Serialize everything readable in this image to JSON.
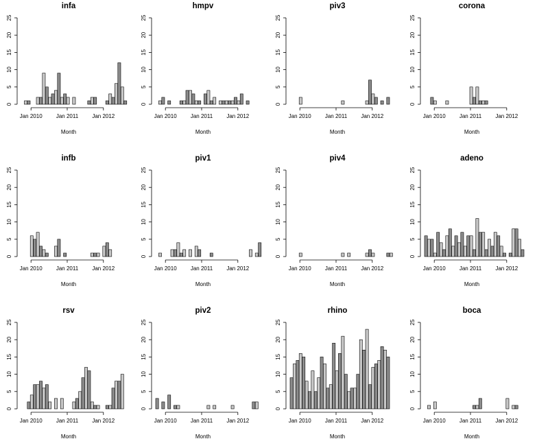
{
  "chart_data": [
    {
      "type": "bar",
      "title": "infa",
      "xlabel": "Month",
      "ylabel": "",
      "ylim": [
        0,
        25
      ],
      "yticks": [
        0,
        5,
        10,
        15,
        20,
        25
      ],
      "xticks": [
        "Jan 2010",
        "Jan 2011",
        "Jan 2012"
      ],
      "categories_start": "2009-10",
      "values": [
        0,
        1,
        1,
        0,
        0,
        2,
        2,
        9,
        5,
        2,
        3,
        4,
        9,
        2,
        3,
        2,
        0,
        2,
        0,
        0,
        0,
        0,
        1,
        2,
        2,
        0,
        0,
        0,
        1,
        3,
        2,
        6,
        12,
        5,
        1
      ]
    },
    {
      "type": "bar",
      "title": "hmpv",
      "xlabel": "Month",
      "ylabel": "",
      "ylim": [
        0,
        25
      ],
      "yticks": [
        0,
        5,
        10,
        15,
        20,
        25
      ],
      "xticks": [
        "Jan 2010",
        "Jan 2011",
        "Jan 2012"
      ],
      "categories_start": "2009-10",
      "values": [
        0,
        1,
        2,
        0,
        1,
        0,
        0,
        0,
        1,
        1,
        4,
        4,
        3,
        1,
        1,
        0,
        3,
        4,
        1,
        2,
        0,
        1,
        1,
        1,
        1,
        1,
        2,
        1,
        3,
        0,
        1,
        0,
        0,
        0,
        0
      ]
    },
    {
      "type": "bar",
      "title": "piv3",
      "xlabel": "Month",
      "ylabel": "",
      "ylim": [
        0,
        25
      ],
      "yticks": [
        0,
        5,
        10,
        15,
        20,
        25
      ],
      "xticks": [
        "Jan 2010",
        "Jan 2011",
        "Jan 2012"
      ],
      "categories_start": "2009-10",
      "values": [
        0,
        0,
        0,
        2,
        0,
        0,
        0,
        0,
        0,
        0,
        0,
        0,
        0,
        0,
        0,
        0,
        0,
        1,
        0,
        0,
        0,
        0,
        0,
        0,
        0,
        1,
        7,
        3,
        2,
        0,
        1,
        0,
        2,
        0,
        0
      ]
    },
    {
      "type": "bar",
      "title": "corona",
      "xlabel": "Month",
      "ylabel": "",
      "ylim": [
        0,
        25
      ],
      "yticks": [
        0,
        5,
        10,
        15,
        20,
        25
      ],
      "xticks": [
        "Jan 2010",
        "Jan 2011",
        "Jan 2012"
      ],
      "categories_start": "2009-10",
      "values": [
        0,
        0,
        2,
        1,
        0,
        0,
        0,
        1,
        0,
        0,
        0,
        0,
        0,
        0,
        0,
        5,
        2,
        5,
        1,
        1,
        1,
        0,
        0,
        0,
        0,
        0,
        0,
        0,
        0,
        0,
        0,
        0,
        0,
        0,
        0
      ]
    },
    {
      "type": "bar",
      "title": "infb",
      "xlabel": "Month",
      "ylabel": "",
      "ylim": [
        0,
        25
      ],
      "yticks": [
        0,
        5,
        10,
        15,
        20,
        25
      ],
      "xticks": [
        "Jan 2010",
        "Jan 2011",
        "Jan 2012"
      ],
      "categories_start": "2009-10",
      "values": [
        0,
        0,
        0,
        6,
        5,
        7,
        3,
        2,
        1,
        0,
        0,
        3,
        5,
        0,
        1,
        0,
        0,
        0,
        0,
        0,
        0,
        0,
        0,
        1,
        1,
        1,
        0,
        3,
        4,
        2,
        0,
        0,
        0,
        0,
        0
      ]
    },
    {
      "type": "bar",
      "title": "piv1",
      "xlabel": "Month",
      "ylabel": "",
      "ylim": [
        0,
        25
      ],
      "yticks": [
        0,
        5,
        10,
        15,
        20,
        25
      ],
      "xticks": [
        "Jan 2010",
        "Jan 2011",
        "Jan 2012"
      ],
      "categories_start": "2009-10",
      "values": [
        0,
        1,
        0,
        0,
        0,
        2,
        2,
        4,
        1,
        2,
        0,
        2,
        0,
        3,
        2,
        0,
        0,
        0,
        1,
        0,
        0,
        0,
        0,
        0,
        0,
        0,
        0,
        0,
        0,
        0,
        0,
        2,
        0,
        1,
        4
      ]
    },
    {
      "type": "bar",
      "title": "piv4",
      "xlabel": "Month",
      "ylabel": "",
      "ylim": [
        0,
        25
      ],
      "yticks": [
        0,
        5,
        10,
        15,
        20,
        25
      ],
      "xticks": [
        "Jan 2010",
        "Jan 2011",
        "Jan 2012"
      ],
      "categories_start": "2009-10",
      "values": [
        0,
        0,
        0,
        1,
        0,
        0,
        0,
        0,
        0,
        0,
        0,
        0,
        0,
        0,
        0,
        0,
        0,
        1,
        0,
        1,
        0,
        0,
        0,
        0,
        0,
        1,
        2,
        1,
        0,
        0,
        0,
        0,
        1,
        1,
        0
      ]
    },
    {
      "type": "bar",
      "title": "adeno",
      "xlabel": "Month",
      "ylabel": "",
      "ylim": [
        0,
        25
      ],
      "yticks": [
        0,
        5,
        10,
        15,
        20,
        25
      ],
      "xticks": [
        "Jan 2010",
        "Jan 2011",
        "Jan 2012"
      ],
      "categories_start": "2009-10",
      "values": [
        6,
        5,
        5,
        1,
        7,
        4,
        2,
        6,
        8,
        3,
        6,
        4,
        7,
        3,
        6,
        6,
        2,
        11,
        7,
        7,
        2,
        5,
        3,
        7,
        6,
        3,
        1,
        0,
        1,
        8,
        8,
        5,
        2,
        0,
        0
      ]
    },
    {
      "type": "bar",
      "title": "rsv",
      "xlabel": "Month",
      "ylabel": "",
      "ylim": [
        0,
        25
      ],
      "yticks": [
        0,
        5,
        10,
        15,
        20,
        25
      ],
      "xticks": [
        "Jan 2010",
        "Jan 2011",
        "Jan 2012"
      ],
      "categories_start": "2009-10",
      "values": [
        0,
        0,
        2,
        4,
        7,
        7,
        8,
        6,
        7,
        2,
        0,
        3,
        0,
        3,
        0,
        0,
        0,
        2,
        3,
        5,
        9,
        12,
        11,
        2,
        1,
        1,
        0,
        0,
        1,
        1,
        6,
        8,
        8,
        10,
        0
      ]
    },
    {
      "type": "bar",
      "title": "piv2",
      "xlabel": "Month",
      "ylabel": "",
      "ylim": [
        0,
        25
      ],
      "yticks": [
        0,
        5,
        10,
        15,
        20,
        25
      ],
      "xticks": [
        "Jan 2010",
        "Jan 2011",
        "Jan 2012"
      ],
      "categories_start": "2009-10",
      "values": [
        3,
        0,
        2,
        0,
        4,
        0,
        1,
        1,
        0,
        0,
        0,
        0,
        0,
        0,
        0,
        0,
        0,
        1,
        0,
        1,
        0,
        0,
        0,
        0,
        0,
        1,
        0,
        0,
        0,
        0,
        0,
        0,
        2,
        2,
        0
      ]
    },
    {
      "type": "bar",
      "title": "rhino",
      "xlabel": "Month",
      "ylabel": "",
      "ylim": [
        0,
        25
      ],
      "yticks": [
        0,
        5,
        10,
        15,
        20,
        25
      ],
      "xticks": [
        "Jan 2010",
        "Jan 2011",
        "Jan 2012"
      ],
      "categories_start": "2009-10",
      "values": [
        9,
        13,
        14,
        16,
        15,
        8,
        5,
        11,
        5,
        9,
        15,
        13,
        6,
        7,
        19,
        11,
        16,
        21,
        10,
        5,
        6,
        6,
        10,
        20,
        17,
        23,
        7,
        12,
        13,
        14,
        18,
        17,
        15,
        0,
        0
      ]
    },
    {
      "type": "bar",
      "title": "boca",
      "xlabel": "Month",
      "ylabel": "",
      "ylim": [
        0,
        25
      ],
      "yticks": [
        0,
        5,
        10,
        15,
        20,
        25
      ],
      "xticks": [
        "Jan 2010",
        "Jan 2011",
        "Jan 2012"
      ],
      "categories_start": "2009-10",
      "values": [
        0,
        1,
        0,
        2,
        0,
        0,
        0,
        0,
        0,
        0,
        0,
        0,
        0,
        0,
        0,
        0,
        1,
        1,
        3,
        0,
        0,
        0,
        0,
        0,
        0,
        0,
        0,
        3,
        0,
        1,
        1,
        0,
        0,
        0,
        0
      ]
    }
  ],
  "colors": {
    "bar_fill_dark": "#8c8c8c",
    "bar_fill_light": "#c8c8c8",
    "stroke": "#000000",
    "background": "#ffffff"
  }
}
